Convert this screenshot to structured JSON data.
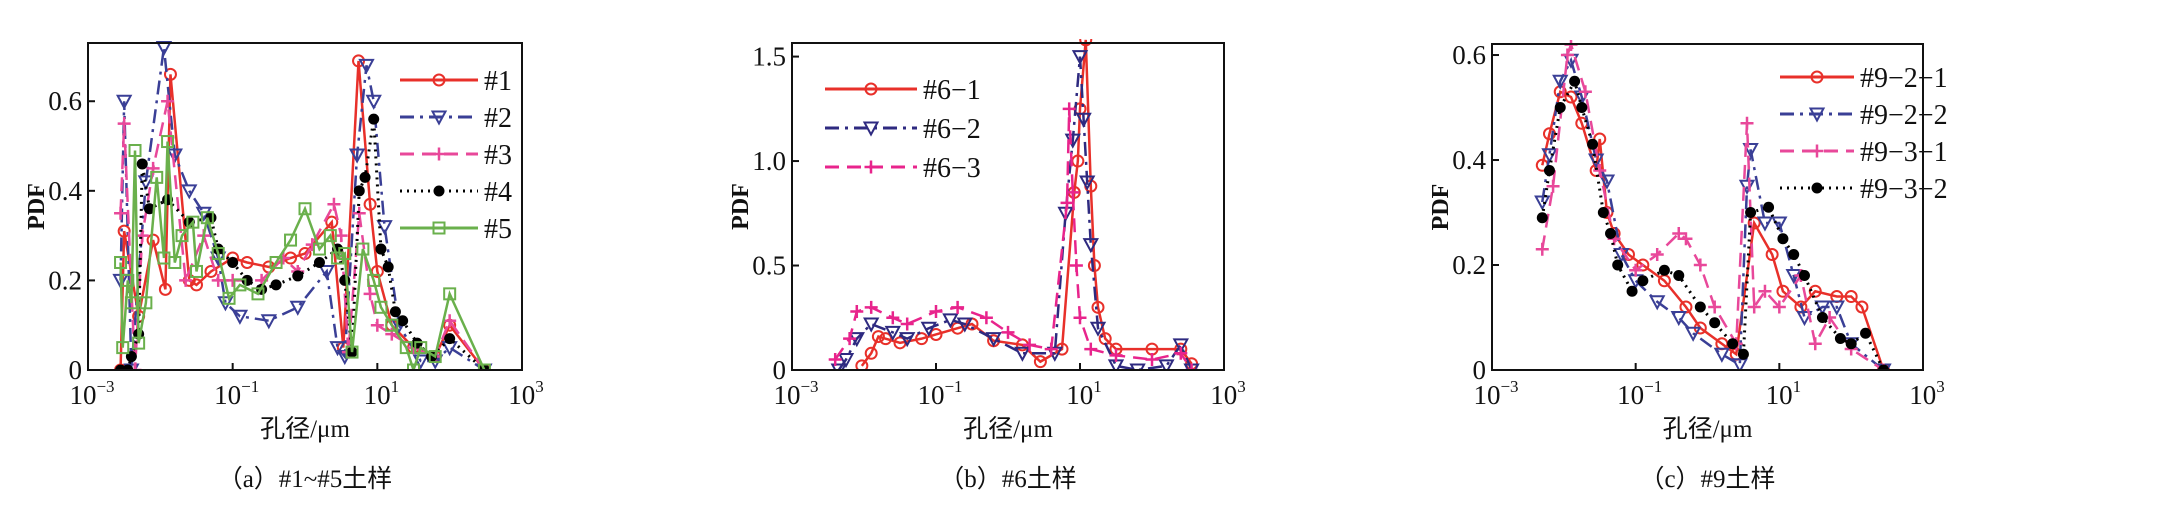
{
  "chart_data": [
    {
      "type": "line",
      "x_scale": "log10",
      "title": "（a）#1~#5土样",
      "xlabel": "孔径/μm",
      "ylabel": "PDF",
      "xlim_log10": [
        -3,
        3
      ],
      "ylim": [
        0,
        0.73
      ],
      "xticks": [
        {
          "base": "10",
          "exp": "−3"
        },
        {
          "base": "10",
          "exp": "−1"
        },
        {
          "base": "10",
          "exp": "1"
        },
        {
          "base": "10",
          "exp": "3"
        }
      ],
      "yticks": [
        {
          "value": 0,
          "label": "0"
        },
        {
          "value": 0.2,
          "label": "0.2"
        },
        {
          "value": 0.4,
          "label": "0.4"
        },
        {
          "value": 0.6,
          "label": "0.6"
        }
      ],
      "legend_position": "top-right",
      "series": [
        {
          "name": "#1",
          "color": "#e8302a",
          "dash": "solid",
          "marker": "circle",
          "log10_x": [
            -2.55,
            -2.5,
            -2.3,
            -2.1,
            -1.93,
            -1.86,
            -1.6,
            -1.5,
            -1.3,
            -1.0,
            -0.8,
            -0.5,
            -0.2,
            0,
            0.37,
            0.53,
            0.74,
            0.9,
            1.0,
            1.2,
            1.5,
            1.8,
            2.0,
            2.48
          ],
          "y": [
            0,
            0.31,
            0.12,
            0.29,
            0.18,
            0.66,
            0.2,
            0.19,
            0.22,
            0.25,
            0.24,
            0.23,
            0.25,
            0.26,
            0.33,
            0.05,
            0.69,
            0.37,
            0.22,
            0.1,
            0.05,
            0.03,
            0.1,
            0
          ]
        },
        {
          "name": "#2",
          "color": "#3a3f96",
          "dash": "dashdot",
          "marker": "triangle-down",
          "log10_x": [
            -2.55,
            -2.5,
            -2.4,
            -2.2,
            -1.95,
            -1.8,
            -1.6,
            -1.4,
            -1.2,
            -1.1,
            -0.9,
            -0.5,
            -0.1,
            0.3,
            0.45,
            0.55,
            0.72,
            0.85,
            0.95,
            1.1,
            1.3,
            1.6,
            1.8,
            2.0,
            2.48
          ],
          "y": [
            0.2,
            0.6,
            0,
            0.42,
            0.72,
            0.48,
            0.4,
            0.35,
            0.25,
            0.15,
            0.12,
            0.11,
            0.14,
            0.22,
            0.05,
            0.03,
            0.48,
            0.68,
            0.6,
            0.32,
            0.1,
            0.02,
            0.02,
            0.05,
            0
          ]
        },
        {
          "name": "#3",
          "color": "#e8489a",
          "dash": "dashed",
          "marker": "plus",
          "log10_x": [
            -2.55,
            -2.5,
            -2.35,
            -2.25,
            -2.1,
            -1.9,
            -1.65,
            -1.4,
            -1.2,
            -1.0,
            -0.6,
            -0.3,
            -0.1,
            0.1,
            0.4,
            0.5,
            0.6,
            0.75,
            0.9,
            1.0,
            1.2,
            1.5,
            1.8,
            2.0,
            2.48
          ],
          "y": [
            0.35,
            0.55,
            0,
            0.3,
            0.45,
            0.6,
            0.2,
            0.3,
            0.2,
            0.2,
            0.2,
            0.25,
            0.22,
            0.28,
            0.37,
            0.3,
            0.04,
            0.35,
            0.17,
            0.1,
            0.08,
            0.05,
            0.03,
            0.11,
            0
          ]
        },
        {
          "name": "#4",
          "color": "#000000",
          "dash": "dotted",
          "marker": "dot",
          "log10_x": [
            -2.55,
            -2.45,
            -2.4,
            -2.3,
            -2.25,
            -2.15,
            -1.9,
            -1.6,
            -1.3,
            -1.2,
            -1.0,
            -0.8,
            -0.6,
            -0.4,
            -0.1,
            0.2,
            0.45,
            0.55,
            0.65,
            0.75,
            0.83,
            0.95,
            1.05,
            1.15,
            1.25,
            1.35,
            1.55,
            1.75,
            2.0,
            2.48
          ],
          "y": [
            0,
            0,
            0.03,
            0.08,
            0.46,
            0.36,
            0.38,
            0.33,
            0.34,
            0.27,
            0.24,
            0.2,
            0.18,
            0.19,
            0.21,
            0.24,
            0.27,
            0.2,
            0.04,
            0.4,
            0.43,
            0.56,
            0.27,
            0.23,
            0.13,
            0.11,
            0.06,
            0.03,
            0.07,
            0
          ]
        },
        {
          "name": "#5",
          "color": "#6ab04c",
          "dash": "solid",
          "marker": "square",
          "log10_x": [
            -2.55,
            -2.52,
            -2.45,
            -2.4,
            -2.35,
            -2.3,
            -2.2,
            -2.05,
            -1.95,
            -1.9,
            -1.8,
            -1.7,
            -1.55,
            -1.5,
            -1.35,
            -1.2,
            -1.05,
            -0.9,
            -0.65,
            -0.4,
            -0.2,
            0,
            0.2,
            0.35,
            0.45,
            0.55,
            0.65,
            0.8,
            0.95,
            1.05,
            1.2,
            1.4,
            1.5,
            1.6,
            1.8,
            2.0,
            2.48
          ],
          "y": [
            0.24,
            0.05,
            0.2,
            0.15,
            0.49,
            0.06,
            0.15,
            0.43,
            0.25,
            0.51,
            0.24,
            0.3,
            0.33,
            0.22,
            0.34,
            0.26,
            0.16,
            0.19,
            0.17,
            0.24,
            0.29,
            0.36,
            0.27,
            0.3,
            0.25,
            0.26,
            0.04,
            0.27,
            0.2,
            0.14,
            0.1,
            0.05,
            0,
            0.05,
            0.03,
            0.17,
            0
          ]
        }
      ]
    },
    {
      "type": "line",
      "x_scale": "log10",
      "title": "（b）#6土样",
      "xlabel": "孔径/μm",
      "ylabel": "PDF",
      "xlim_log10": [
        -3,
        3
      ],
      "ylim": [
        0,
        1.565
      ],
      "xticks": [
        {
          "base": "10",
          "exp": "−3"
        },
        {
          "base": "10",
          "exp": "−1"
        },
        {
          "base": "10",
          "exp": "1"
        },
        {
          "base": "10",
          "exp": "3"
        }
      ],
      "yticks": [
        {
          "value": 0,
          "label": "0"
        },
        {
          "value": 0.5,
          "label": "0.5"
        },
        {
          "value": 1.0,
          "label": "1.0"
        },
        {
          "value": 1.5,
          "label": "1.5"
        }
      ],
      "legend_position": "top-left",
      "series": [
        {
          "name": "#6−1",
          "color": "#e8302a",
          "dash": "solid",
          "marker": "circle",
          "log10_x": [
            -2.03,
            -1.9,
            -1.8,
            -1.7,
            -1.5,
            -1.2,
            -1.0,
            -0.7,
            -0.5,
            -0.2,
            0.2,
            0.45,
            0.75,
            0.92,
            0.97,
            1.0,
            1.08,
            1.15,
            1.2,
            1.25,
            1.35,
            1.5,
            2.0,
            2.4,
            2.55
          ],
          "y": [
            0.02,
            0.08,
            0.16,
            0.15,
            0.13,
            0.15,
            0.17,
            0.2,
            0.22,
            0.14,
            0.12,
            0.04,
            0.1,
            0.85,
            1.0,
            1.25,
            1.58,
            0.88,
            0.5,
            0.3,
            0.15,
            0.1,
            0.1,
            0.1,
            0.03
          ]
        },
        {
          "name": "#6−2",
          "color": "#2e2a80",
          "dash": "dashdot",
          "marker": "triangle-down",
          "log10_x": [
            -2.35,
            -2.25,
            -2.1,
            -1.9,
            -1.6,
            -1.4,
            -1.1,
            -0.8,
            -0.6,
            -0.2,
            0.2,
            0.65,
            0.8,
            0.9,
            1.0,
            1.05,
            1.1,
            1.15,
            1.25,
            1.5,
            1.8,
            2.2,
            2.4,
            2.55
          ],
          "y": [
            0,
            0.05,
            0.15,
            0.22,
            0.18,
            0.15,
            0.2,
            0.24,
            0.22,
            0.15,
            0.08,
            0.08,
            0.75,
            1.1,
            1.5,
            1.2,
            0.9,
            0.6,
            0.2,
            0.02,
            0,
            0.02,
            0.12,
            0
          ]
        },
        {
          "name": "#6−3",
          "color": "#e8248c",
          "dash": "dashed",
          "marker": "plus",
          "log10_x": [
            -2.4,
            -2.2,
            -2.1,
            -1.9,
            -1.6,
            -1.4,
            -1.0,
            -0.7,
            -0.3,
            0.0,
            0.3,
            0.6,
            0.82,
            0.85,
            0.9,
            0.95,
            1.0,
            1.15,
            1.5,
            2.0,
            2.4,
            2.55
          ],
          "y": [
            0.05,
            0.15,
            0.28,
            0.3,
            0.25,
            0.22,
            0.28,
            0.3,
            0.25,
            0.18,
            0.12,
            0.1,
            0.8,
            1.25,
            0.85,
            0.5,
            0.25,
            0.1,
            0.07,
            0.05,
            0.08,
            0
          ]
        }
      ]
    },
    {
      "type": "line",
      "x_scale": "log10",
      "title": "（c）#9土样",
      "xlabel": "孔径/μm",
      "ylabel": "PDF",
      "xlim_log10": [
        -3,
        3
      ],
      "ylim": [
        0,
        0.621
      ],
      "xticks": [
        {
          "base": "10",
          "exp": "−3"
        },
        {
          "base": "10",
          "exp": "−1"
        },
        {
          "base": "10",
          "exp": "1"
        },
        {
          "base": "10",
          "exp": "3"
        }
      ],
      "yticks": [
        {
          "value": 0,
          "label": "0"
        },
        {
          "value": 0.2,
          "label": "0.2"
        },
        {
          "value": 0.4,
          "label": "0.4"
        },
        {
          "value": 0.6,
          "label": "0.6"
        }
      ],
      "legend_position": "top-right",
      "series": [
        {
          "name": "#9−2−1",
          "color": "#e8302a",
          "dash": "solid",
          "marker": "circle",
          "log10_x": [
            -2.3,
            -2.2,
            -2.05,
            -1.9,
            -1.75,
            -1.55,
            -1.5,
            -1.4,
            -1.3,
            -1.1,
            -0.9,
            -0.6,
            -0.3,
            -0.1,
            0.2,
            0.4,
            0.65,
            0.9,
            1.05,
            1.3,
            1.5,
            1.8,
            2.0,
            2.15,
            2.45
          ],
          "y": [
            0.39,
            0.45,
            0.53,
            0.52,
            0.47,
            0.38,
            0.44,
            0.3,
            0.26,
            0.22,
            0.2,
            0.17,
            0.12,
            0.08,
            0.05,
            0.03,
            0.28,
            0.22,
            0.15,
            0.12,
            0.15,
            0.14,
            0.14,
            0.12,
            0
          ]
        },
        {
          "name": "#9−2−2",
          "color": "#3a3f96",
          "dash": "dashdot",
          "marker": "triangle-down",
          "log10_x": [
            -2.3,
            -2.2,
            -2.05,
            -1.9,
            -1.75,
            -1.55,
            -1.4,
            -1.2,
            -1.0,
            -0.7,
            -0.4,
            -0.2,
            0.2,
            0.45,
            0.55,
            0.6,
            0.8,
            1.0,
            1.2,
            1.35,
            1.6,
            1.8,
            2.0,
            2.45
          ],
          "y": [
            0.32,
            0.41,
            0.55,
            0.59,
            0.52,
            0.4,
            0.36,
            0.22,
            0.17,
            0.13,
            0.1,
            0.07,
            0.03,
            0.01,
            0.35,
            0.42,
            0.28,
            0.28,
            0.18,
            0.1,
            0.12,
            0.12,
            0.05,
            0
          ]
        },
        {
          "name": "#9−3−1",
          "color": "#e8489a",
          "dash": "dashed",
          "marker": "plus",
          "log10_x": [
            -2.3,
            -2.15,
            -1.95,
            -1.9,
            -1.7,
            -1.5,
            -1.3,
            -1.0,
            -0.7,
            -0.4,
            -0.3,
            -0.1,
            0.1,
            0.4,
            0.55,
            0.65,
            0.8,
            1.0,
            1.3,
            1.5,
            1.7,
            2.0,
            2.45
          ],
          "y": [
            0.23,
            0.35,
            0.6,
            0.62,
            0.53,
            0.38,
            0.25,
            0.19,
            0.22,
            0.26,
            0.25,
            0.2,
            0.12,
            0.05,
            0.47,
            0.12,
            0.15,
            0.12,
            0.18,
            0.05,
            0.1,
            0.04,
            0
          ]
        },
        {
          "name": "#9−3−2",
          "color": "#000000",
          "dash": "dotted",
          "marker": "dot",
          "log10_x": [
            -2.3,
            -2.2,
            -2.05,
            -1.85,
            -1.75,
            -1.6,
            -1.45,
            -1.35,
            -1.25,
            -1.05,
            -0.9,
            -0.6,
            -0.4,
            -0.1,
            0.1,
            0.35,
            0.5,
            0.6,
            0.85,
            1.05,
            1.2,
            1.35,
            1.6,
            1.85,
            2.0,
            2.2,
            2.45
          ],
          "y": [
            0.29,
            0.38,
            0.5,
            0.55,
            0.5,
            0.43,
            0.3,
            0.26,
            0.2,
            0.15,
            0.17,
            0.19,
            0.18,
            0.12,
            0.09,
            0.05,
            0.03,
            0.3,
            0.31,
            0.25,
            0.22,
            0.18,
            0.1,
            0.06,
            0.05,
            0.07,
            0
          ]
        }
      ]
    }
  ]
}
